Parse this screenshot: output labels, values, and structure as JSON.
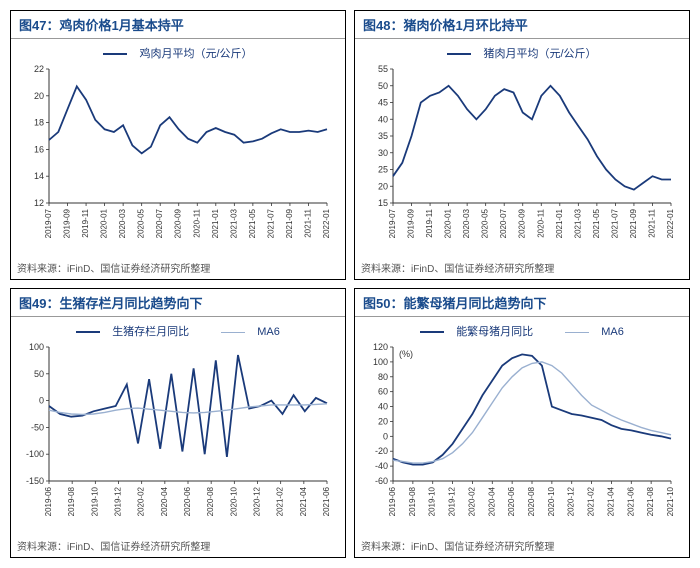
{
  "colors": {
    "series_dark": "#1a3a7a",
    "series_light": "#9ab0d0",
    "title": "#1a4b8c",
    "axis": "#333333",
    "bg": "#ffffff"
  },
  "typography": {
    "title_fontsize": 13,
    "legend_fontsize": 11,
    "axis_fontsize": 9,
    "xlabel_fontsize": 8,
    "footer_fontsize": 10
  },
  "footer_text": "资料来源：iFinD、国信证券经济研究所整理",
  "charts": [
    {
      "id": "c47",
      "title_prefix": "图47：",
      "title": "鸡肉价格1月基本持平",
      "type": "line",
      "legend": [
        {
          "label": "鸡肉月平均（元/公斤）",
          "style": "dark"
        }
      ],
      "ylim": [
        12,
        22
      ],
      "yticks": [
        12,
        14,
        16,
        18,
        20,
        22
      ],
      "xlabels": [
        "2019-07",
        "2019-09",
        "2019-11",
        "2020-01",
        "2020-03",
        "2020-05",
        "2020-07",
        "2020-09",
        "2020-11",
        "2021-01",
        "2021-03",
        "2021-05",
        "2021-07",
        "2021-09",
        "2021-11",
        "2022-01"
      ],
      "series": [
        {
          "style": "dark",
          "values": [
            16.7,
            17.3,
            19.0,
            20.7,
            19.7,
            18.2,
            17.5,
            17.3,
            17.8,
            16.3,
            15.7,
            16.2,
            17.8,
            18.4,
            17.5,
            16.8,
            16.5,
            17.3,
            17.6,
            17.3,
            17.1,
            16.5,
            16.6,
            16.8,
            17.2,
            17.5,
            17.3,
            17.3,
            17.4,
            17.3,
            17.5
          ]
        }
      ]
    },
    {
      "id": "c48",
      "title_prefix": "图48：",
      "title": "猪肉价格1月环比持平",
      "type": "line",
      "legend": [
        {
          "label": "猪肉月平均（元/公斤）",
          "style": "dark"
        }
      ],
      "ylim": [
        15,
        55
      ],
      "yticks": [
        15,
        20,
        25,
        30,
        35,
        40,
        45,
        50,
        55
      ],
      "xlabels": [
        "2019-07",
        "2019-09",
        "2019-11",
        "2020-01",
        "2020-03",
        "2020-05",
        "2020-07",
        "2020-09",
        "2020-11",
        "2021-01",
        "2021-03",
        "2021-05",
        "2021-07",
        "2021-09",
        "2021-11",
        "2022-01"
      ],
      "series": [
        {
          "style": "dark",
          "values": [
            23,
            27,
            35,
            45,
            47,
            48,
            50,
            47,
            43,
            40,
            43,
            47,
            49,
            48,
            42,
            40,
            47,
            50,
            47,
            42,
            38,
            34,
            29,
            25,
            22,
            20,
            19,
            21,
            23,
            22,
            22
          ]
        }
      ]
    },
    {
      "id": "c49",
      "title_prefix": "图49：",
      "title": "生猪存栏月同比趋势向下",
      "type": "line",
      "legend": [
        {
          "label": "生猪存栏月同比",
          "style": "dark"
        },
        {
          "label": "MA6",
          "style": "light"
        }
      ],
      "ylim": [
        -150,
        100
      ],
      "yticks": [
        -150,
        -100,
        -50,
        0,
        50,
        100
      ],
      "xlabels": [
        "2019-06",
        "2019-08",
        "2019-10",
        "2019-12",
        "2020-02",
        "2020-04",
        "2020-06",
        "2020-08",
        "2020-10",
        "2020-12",
        "2021-02",
        "2021-04",
        "2021-06"
      ],
      "series": [
        {
          "style": "dark",
          "values": [
            -10,
            -25,
            -30,
            -28,
            -20,
            -15,
            -10,
            30,
            -80,
            40,
            -90,
            50,
            -95,
            60,
            -100,
            75,
            -105,
            85,
            -15,
            -10,
            0,
            -25,
            10,
            -20,
            5,
            -5
          ]
        },
        {
          "style": "light",
          "values": [
            -18,
            -22,
            -25,
            -26,
            -25,
            -22,
            -18,
            -15,
            -14,
            -16,
            -18,
            -20,
            -22,
            -23,
            -22,
            -20,
            -18,
            -15,
            -12,
            -10,
            -8,
            -8,
            -8,
            -8,
            -7,
            -6
          ]
        }
      ]
    },
    {
      "id": "c50",
      "title_prefix": "图50：",
      "title": "能繁母猪月同比趋势向下",
      "type": "line",
      "legend": [
        {
          "label": "能繁母猪月同比",
          "style": "dark"
        },
        {
          "label": "MA6",
          "style": "light"
        }
      ],
      "ylabel_unit": "(%)",
      "ylim": [
        -60,
        120
      ],
      "yticks": [
        -60,
        -40,
        -20,
        0,
        20,
        40,
        60,
        80,
        100,
        120
      ],
      "xlabels": [
        "2019-06",
        "2019-08",
        "2019-10",
        "2019-12",
        "2020-02",
        "2020-04",
        "2020-06",
        "2020-08",
        "2020-10",
        "2020-12",
        "2021-02",
        "2021-04",
        "2021-06",
        "2021-08",
        "2021-10"
      ],
      "series": [
        {
          "style": "dark",
          "values": [
            -30,
            -35,
            -38,
            -38,
            -35,
            -25,
            -10,
            10,
            30,
            55,
            75,
            95,
            105,
            110,
            108,
            95,
            40,
            35,
            30,
            28,
            25,
            22,
            15,
            10,
            8,
            5,
            2,
            0,
            -3
          ]
        },
        {
          "style": "light",
          "values": [
            -32,
            -34,
            -36,
            -36,
            -34,
            -30,
            -22,
            -10,
            5,
            25,
            45,
            65,
            80,
            92,
            98,
            100,
            95,
            85,
            70,
            55,
            42,
            35,
            28,
            22,
            17,
            12,
            8,
            5,
            2
          ]
        }
      ]
    }
  ]
}
